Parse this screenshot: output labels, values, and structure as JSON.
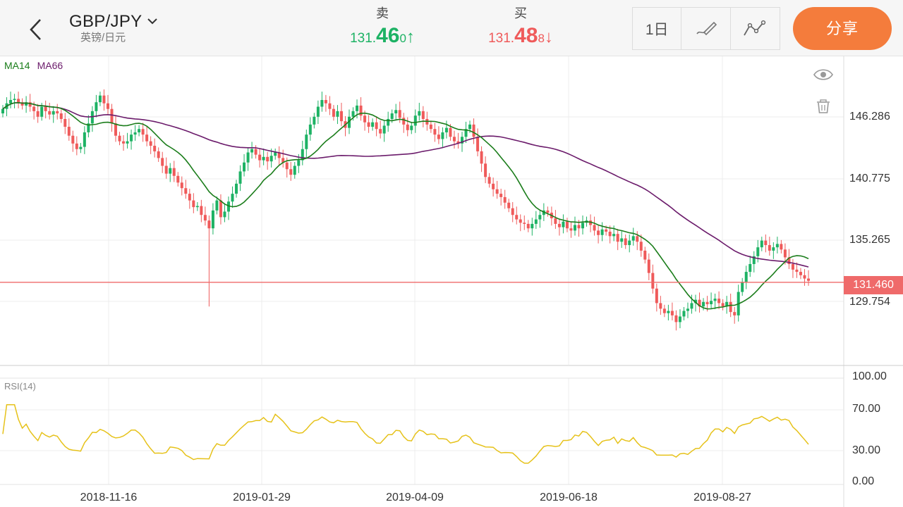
{
  "header": {
    "pair": "GBP/JPY",
    "pair_subtitle": "英镑/日元",
    "sell": {
      "label": "卖",
      "price_prefix": "131.",
      "price_big": "46",
      "price_small": "0",
      "arrow": "↑"
    },
    "buy": {
      "label": "买",
      "price_prefix": "131.",
      "price_big": "48",
      "price_small": "8",
      "arrow": "↓"
    },
    "timeframe": "1日",
    "share_label": "分享",
    "colors": {
      "up": "#1db264",
      "down": "#ef5a5a",
      "share": "#f47c3c"
    }
  },
  "chart_data": [
    {
      "type": "candlestick",
      "indicators": [
        "MA14",
        "MA66"
      ],
      "y_ticks": [
        "146.286",
        "140.775",
        "135.265",
        "129.754"
      ],
      "current_price": "131.460",
      "x_ticks": [
        "2018-11-16",
        "2019-01-29",
        "2019-04-09",
        "2019-06-18",
        "2019-08-27"
      ],
      "close_series": [
        147,
        147.5,
        147.8,
        147.9,
        147.6,
        147.3,
        147.6,
        147.2,
        146.8,
        146.3,
        147.2,
        146.8,
        146.5,
        146.8,
        146.6,
        146.1,
        145.4,
        144.6,
        143.9,
        143.4,
        143.6,
        144.9,
        145.7,
        146.8,
        147.6,
        148.2,
        147.5,
        147,
        145.7,
        144.6,
        144.1,
        143.9,
        144.1,
        144.7,
        144.9,
        145.2,
        144.7,
        144.1,
        143.7,
        143.2,
        142.6,
        141.9,
        141.2,
        141.7,
        141,
        140.4,
        139.9,
        139.4,
        138.8,
        138.2,
        138.3,
        137.5,
        137,
        136.3,
        137.9,
        138.8,
        137.3,
        137.8,
        138.7,
        139.4,
        140.3,
        141.4,
        142.2,
        143.1,
        143.4,
        142.9,
        142.4,
        142.7,
        142.3,
        142.8,
        143.1,
        142.6,
        142.2,
        141.6,
        141.1,
        141.9,
        142.4,
        143.4,
        144.7,
        145.6,
        146.3,
        147.2,
        147.8,
        147.5,
        147,
        146.3,
        146.8,
        145.9,
        145.3,
        146.3,
        146.8,
        147.3,
        146.4,
        145.8,
        145.4,
        145.8,
        145.2,
        144.8,
        145.5,
        146.1,
        146.6,
        146.9,
        146.2,
        145.6,
        145.1,
        145.5,
        146.4,
        146.8,
        146.1,
        145.6,
        145.2,
        144.7,
        144.3,
        144.9,
        145.3,
        144.5,
        144.1,
        143.9,
        144.5,
        145.2,
        145.6,
        144.5,
        143.2,
        142.1,
        140.9,
        140.3,
        139.8,
        139.4,
        139.1,
        138.6,
        138.1,
        137.5,
        137.1,
        136.8,
        136.7,
        136.3,
        136.7,
        137.1,
        137.5,
        137.9,
        137.7,
        137.2,
        136.7,
        136.4,
        136.9,
        136.3,
        136.1,
        136.6,
        136.3,
        136.8,
        137,
        136.6,
        136.1,
        135.7,
        136.2,
        136,
        135.6,
        135.8,
        135.1,
        135.4,
        134.8,
        135.2,
        135.6,
        135.1,
        134.3,
        133.5,
        132.3,
        130.9,
        129.6,
        129.1,
        128.7,
        128.9,
        128.5,
        127.9,
        128.4,
        128.9,
        129.1,
        129.6,
        129.9,
        129.3,
        129.7,
        129.5,
        129.8,
        130,
        129.6,
        129.3,
        129.7,
        128.8,
        128.5,
        130.6,
        131.5,
        132.4,
        133.1,
        133.8,
        134.6,
        135.2,
        134.8,
        134.3,
        134.6,
        134.9,
        134.4,
        133.7,
        133.1,
        132.6,
        132.4,
        132.1,
        131.8,
        131.6
      ],
      "rsi_axis": [
        "100.00",
        "70.00",
        "30.00",
        "0.00"
      ],
      "rsi_label": "RSI(14)"
    }
  ]
}
